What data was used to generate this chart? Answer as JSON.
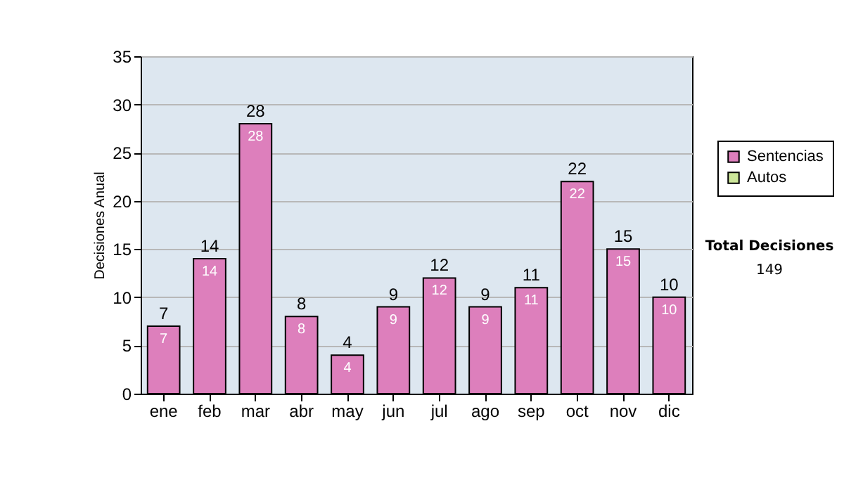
{
  "chart_data": {
    "type": "bar",
    "stacked": true,
    "ylabel": "Decisiones Anual",
    "categories": [
      "ene",
      "feb",
      "mar",
      "abr",
      "may",
      "jun",
      "jul",
      "ago",
      "sep",
      "oct",
      "nov",
      "dic"
    ],
    "series": [
      {
        "name": "Sentencias",
        "color": "#dd7fbc",
        "values": [
          7,
          14,
          28,
          8,
          4,
          9,
          12,
          9,
          11,
          22,
          15,
          10
        ],
        "value_labels": [
          "7",
          "14",
          "28",
          "8",
          "4",
          "9",
          "12",
          "9",
          "11",
          "22",
          "15",
          "10"
        ]
      },
      {
        "name": "Autos",
        "color": "#cce69a",
        "values": [
          0,
          0,
          0,
          0,
          0,
          0,
          0,
          0,
          0,
          0,
          0,
          0
        ]
      }
    ],
    "totals": [
      "7",
      "14",
      "28",
      "8",
      "4",
      "9",
      "12",
      "9",
      "11",
      "22",
      "15",
      "10"
    ],
    "ylim": [
      0,
      35
    ],
    "yticks": [
      0,
      5,
      10,
      15,
      20,
      25,
      30,
      35
    ],
    "grid": "y",
    "legend": "right",
    "annotations": [
      "Total Decisiones",
      "149"
    ]
  }
}
